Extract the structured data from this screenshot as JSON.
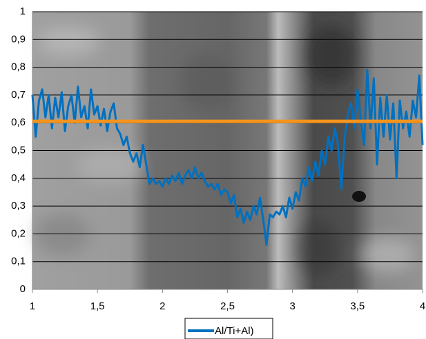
{
  "chart_data": {
    "type": "line",
    "x": [
      1,
      1.025,
      1.05,
      1.075,
      1.1,
      1.125,
      1.15,
      1.175,
      1.2,
      1.225,
      1.25,
      1.275,
      1.3,
      1.325,
      1.35,
      1.375,
      1.4,
      1.425,
      1.45,
      1.475,
      1.5,
      1.525,
      1.55,
      1.575,
      1.6,
      1.625,
      1.65,
      1.675,
      1.7,
      1.725,
      1.75,
      1.775,
      1.8,
      1.825,
      1.85,
      1.875,
      1.9,
      1.925,
      1.95,
      1.975,
      2,
      2.025,
      2.05,
      2.075,
      2.1,
      2.125,
      2.15,
      2.175,
      2.2,
      2.225,
      2.25,
      2.275,
      2.3,
      2.325,
      2.35,
      2.375,
      2.4,
      2.425,
      2.45,
      2.475,
      2.5,
      2.525,
      2.55,
      2.575,
      2.6,
      2.625,
      2.65,
      2.675,
      2.7,
      2.725,
      2.75,
      2.775,
      2.8,
      2.825,
      2.85,
      2.875,
      2.9,
      2.925,
      2.95,
      2.975,
      3,
      3.025,
      3.05,
      3.075,
      3.1,
      3.125,
      3.15,
      3.175,
      3.2,
      3.225,
      3.25,
      3.275,
      3.3,
      3.325,
      3.35,
      3.375,
      3.4,
      3.425,
      3.45,
      3.475,
      3.5,
      3.525,
      3.55,
      3.575,
      3.6,
      3.625,
      3.65,
      3.675,
      3.7,
      3.725,
      3.75,
      3.775,
      3.8,
      3.825,
      3.85,
      3.875,
      3.9,
      3.925,
      3.95,
      3.975,
      4
    ],
    "series": [
      {
        "name": "Al/Ti+Al)",
        "color": "#0070c0",
        "values": [
          0.7,
          0.55,
          0.68,
          0.72,
          0.62,
          0.7,
          0.58,
          0.69,
          0.62,
          0.71,
          0.57,
          0.66,
          0.7,
          0.6,
          0.73,
          0.62,
          0.66,
          0.58,
          0.72,
          0.63,
          0.66,
          0.59,
          0.65,
          0.57,
          0.64,
          0.67,
          0.58,
          0.56,
          0.52,
          0.55,
          0.49,
          0.46,
          0.49,
          0.44,
          0.52,
          0.45,
          0.38,
          0.4,
          0.38,
          0.39,
          0.37,
          0.4,
          0.38,
          0.41,
          0.39,
          0.42,
          0.38,
          0.41,
          0.43,
          0.4,
          0.44,
          0.4,
          0.42,
          0.39,
          0.37,
          0.38,
          0.36,
          0.38,
          0.34,
          0.36,
          0.35,
          0.31,
          0.34,
          0.26,
          0.29,
          0.24,
          0.28,
          0.25,
          0.3,
          0.27,
          0.33,
          0.25,
          0.16,
          0.27,
          0.26,
          0.28,
          0.27,
          0.3,
          0.26,
          0.33,
          0.29,
          0.35,
          0.32,
          0.4,
          0.37,
          0.44,
          0.39,
          0.46,
          0.41,
          0.5,
          0.45,
          0.55,
          0.5,
          0.58,
          0.52,
          0.36,
          0.54,
          0.63,
          0.67,
          0.58,
          0.72,
          0.61,
          0.52,
          0.79,
          0.58,
          0.76,
          0.45,
          0.69,
          0.55,
          0.7,
          0.54,
          0.67,
          0.4,
          0.68,
          0.58,
          0.64,
          0.55,
          0.68,
          0.62,
          0.77,
          0.52
        ]
      }
    ],
    "reference_line": {
      "value": 0.605,
      "color": "#f7941d"
    },
    "xlim": [
      1,
      4
    ],
    "xticks": [
      1,
      {
        "value": 1.5,
        "label": "1,5"
      },
      2,
      {
        "value": 2.5,
        "label": "2,5"
      },
      3,
      {
        "value": 3.5,
        "label": "3,5"
      },
      4
    ],
    "ylim": [
      0,
      1
    ],
    "yticks": [
      0,
      {
        "value": 0.1,
        "label": "0,1"
      },
      {
        "value": 0.2,
        "label": "0,2"
      },
      {
        "value": 0.3,
        "label": "0,3"
      },
      {
        "value": 0.4,
        "label": "0,4"
      },
      {
        "value": 0.5,
        "label": "0,5"
      },
      {
        "value": 0.6,
        "label": "0,6"
      },
      {
        "value": 0.7,
        "label": "0,7"
      },
      {
        "value": 0.8,
        "label": "0,8"
      },
      {
        "value": 0.9,
        "label": "0,9"
      },
      1
    ],
    "grid": true,
    "legend": "bottom"
  }
}
